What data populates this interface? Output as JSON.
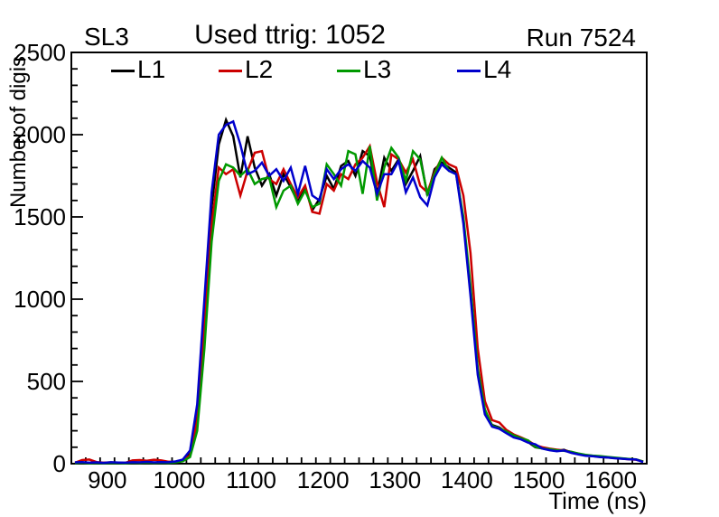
{
  "header": {
    "left_label": "SL3",
    "center_label": "Used ttrig: 1052",
    "right_label": "Run 7524"
  },
  "axes": {
    "x": {
      "title": "Time (ns)",
      "min": 850,
      "max": 1650,
      "major_ticks": [
        900,
        1000,
        1100,
        1200,
        1300,
        1400,
        1500,
        1600
      ],
      "minor_step": 20
    },
    "y": {
      "title": "Number of digis",
      "min": 0,
      "max": 2500,
      "major_ticks": [
        0,
        500,
        1000,
        1500,
        2000,
        2500
      ],
      "minor_step": 100
    }
  },
  "chart_data": {
    "type": "line",
    "title": "Used ttrig: 1052",
    "xlabel": "Time (ns)",
    "ylabel": "Number of digis",
    "xlim": [
      850,
      1650
    ],
    "ylim": [
      0,
      2500
    ],
    "grid": false,
    "legend_position": "top-inside",
    "x": [
      855,
      865,
      875,
      885,
      895,
      905,
      915,
      925,
      935,
      945,
      955,
      965,
      975,
      985,
      995,
      1005,
      1015,
      1025,
      1035,
      1045,
      1055,
      1065,
      1075,
      1085,
      1095,
      1105,
      1115,
      1125,
      1135,
      1145,
      1155,
      1165,
      1175,
      1185,
      1195,
      1205,
      1215,
      1225,
      1235,
      1245,
      1255,
      1265,
      1275,
      1285,
      1295,
      1305,
      1315,
      1325,
      1335,
      1345,
      1355,
      1365,
      1375,
      1385,
      1395,
      1405,
      1415,
      1425,
      1435,
      1445,
      1455,
      1465,
      1475,
      1485,
      1495,
      1505,
      1515,
      1525,
      1535,
      1545,
      1555,
      1565,
      1575,
      1585,
      1595,
      1605,
      1615,
      1625,
      1635,
      1645
    ],
    "series": [
      {
        "name": "L1",
        "color": "#000000",
        "values": [
          5,
          8,
          3,
          6,
          4,
          7,
          5,
          4,
          8,
          6,
          10,
          6,
          9,
          7,
          12,
          20,
          60,
          300,
          900,
          1560,
          1940,
          2090,
          1990,
          1740,
          1990,
          1800,
          1690,
          1760,
          1630,
          1760,
          1680,
          1590,
          1680,
          1540,
          1610,
          1750,
          1670,
          1810,
          1840,
          1750,
          1900,
          1870,
          1640,
          1860,
          1780,
          1850,
          1700,
          1780,
          1870,
          1630,
          1790,
          1830,
          1800,
          1770,
          1480,
          1050,
          560,
          310,
          235,
          220,
          190,
          168,
          150,
          132,
          100,
          93,
          88,
          78,
          84,
          68,
          58,
          50,
          46,
          42,
          38,
          35,
          32,
          28,
          26,
          12
        ]
      },
      {
        "name": "L2",
        "color": "#cc0000",
        "values": [
          6,
          22,
          25,
          10,
          6,
          8,
          6,
          5,
          20,
          22,
          18,
          24,
          20,
          12,
          10,
          18,
          50,
          260,
          820,
          1450,
          1800,
          1760,
          1790,
          1630,
          1780,
          1890,
          1900,
          1730,
          1700,
          1790,
          1700,
          1620,
          1690,
          1530,
          1520,
          1700,
          1660,
          1760,
          1730,
          1820,
          1860,
          1930,
          1710,
          1560,
          1880,
          1850,
          1770,
          1850,
          1690,
          1650,
          1770,
          1860,
          1820,
          1800,
          1630,
          1280,
          700,
          380,
          265,
          250,
          205,
          178,
          160,
          140,
          112,
          100,
          92,
          85,
          80,
          72,
          60,
          52,
          47,
          44,
          40,
          34,
          31,
          27,
          24,
          14
        ]
      },
      {
        "name": "L3",
        "color": "#009900",
        "values": [
          4,
          6,
          3,
          5,
          3,
          5,
          4,
          3,
          6,
          5,
          7,
          5,
          6,
          5,
          8,
          15,
          40,
          200,
          700,
          1350,
          1720,
          1820,
          1800,
          1750,
          1790,
          1700,
          1730,
          1740,
          1560,
          1660,
          1690,
          1580,
          1660,
          1560,
          1580,
          1820,
          1760,
          1690,
          1900,
          1880,
          1640,
          1930,
          1600,
          1800,
          1920,
          1860,
          1720,
          1900,
          1850,
          1640,
          1760,
          1860,
          1780,
          1760,
          1500,
          1080,
          580,
          330,
          230,
          215,
          195,
          172,
          155,
          142,
          102,
          92,
          88,
          82,
          78,
          72,
          62,
          54,
          49,
          46,
          41,
          37,
          33,
          29,
          26,
          13
        ]
      },
      {
        "name": "L4",
        "color": "#0000cc",
        "values": [
          8,
          10,
          6,
          8,
          5,
          9,
          7,
          6,
          9,
          8,
          11,
          8,
          10,
          9,
          14,
          25,
          80,
          360,
          1000,
          1650,
          2000,
          2060,
          2080,
          1940,
          1760,
          1780,
          1830,
          1750,
          1790,
          1720,
          1800,
          1640,
          1810,
          1630,
          1600,
          1790,
          1730,
          1790,
          1820,
          1780,
          1840,
          1800,
          1640,
          1760,
          1760,
          1840,
          1650,
          1740,
          1620,
          1570,
          1740,
          1820,
          1780,
          1760,
          1460,
          1020,
          540,
          300,
          225,
          212,
          185,
          160,
          148,
          128,
          118,
          92,
          82,
          76,
          80,
          66,
          56,
          48,
          45,
          40,
          38,
          33,
          30,
          27,
          25,
          10
        ]
      }
    ]
  }
}
